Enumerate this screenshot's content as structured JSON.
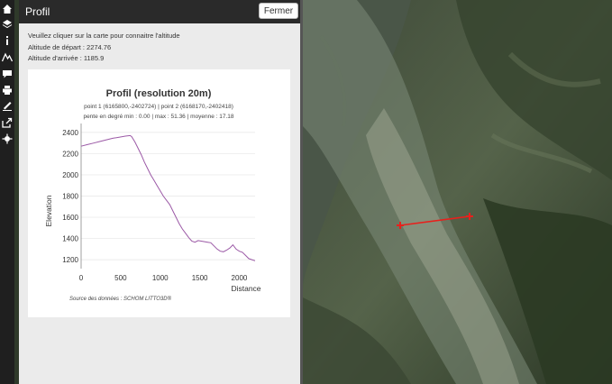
{
  "toolbar": {
    "icons": [
      "home-icon",
      "layers-icon",
      "info-icon",
      "mountain-profile-icon",
      "comment-icon",
      "print-icon",
      "draw-icon",
      "share-icon",
      "locate-icon"
    ]
  },
  "panel": {
    "title": "Profil",
    "close_label": "Fermer",
    "instruction": "Veuillez cliquer sur la carte pour connaitre l'altitude",
    "start_altitude": "Altitude de départ : 2274.76",
    "end_altitude": "Altitude d'arrivée : 1185.9"
  },
  "chart_data": {
    "type": "line",
    "title": "Profil (resolution 20m)",
    "subtitle1": "point 1 (6165800,-2402724) | point 2 (6168170,-2402418)",
    "subtitle2": "pente en degré  min :  0.00 | max : 51.36 | moyenne : 17.18",
    "xlabel": "Distance",
    "ylabel": "Elevation",
    "xlim": [
      0,
      2200
    ],
    "ylim": [
      1150,
      2450
    ],
    "xticks": [
      0,
      500,
      1000,
      1500,
      2000
    ],
    "yticks": [
      1200,
      1400,
      1600,
      1800,
      2000,
      2200,
      2400
    ],
    "source": "Source des données : SCHOM LITTO3D®",
    "color": "#9b59a6",
    "series": [
      {
        "x": [
          0,
          80,
          160,
          240,
          320,
          400,
          480,
          560,
          620,
          640,
          680,
          720,
          760,
          800,
          840,
          880,
          920,
          960,
          1000,
          1040,
          1080,
          1120,
          1160,
          1200,
          1240,
          1280,
          1320,
          1360,
          1400,
          1440,
          1480,
          1520,
          1560,
          1600,
          1640,
          1680,
          1720,
          1760,
          1800,
          1840,
          1880,
          1920,
          1960,
          1980,
          2000,
          2040,
          2080,
          2120,
          2160,
          2200
        ],
        "y": [
          2270,
          2285,
          2300,
          2315,
          2330,
          2345,
          2355,
          2365,
          2370,
          2360,
          2310,
          2250,
          2190,
          2120,
          2060,
          2000,
          1950,
          1900,
          1850,
          1800,
          1760,
          1720,
          1660,
          1600,
          1540,
          1490,
          1450,
          1410,
          1375,
          1365,
          1380,
          1375,
          1370,
          1365,
          1360,
          1330,
          1300,
          1280,
          1275,
          1290,
          1310,
          1340,
          1300,
          1290,
          1280,
          1270,
          1240,
          1210,
          1200,
          1190
        ]
      }
    ]
  }
}
